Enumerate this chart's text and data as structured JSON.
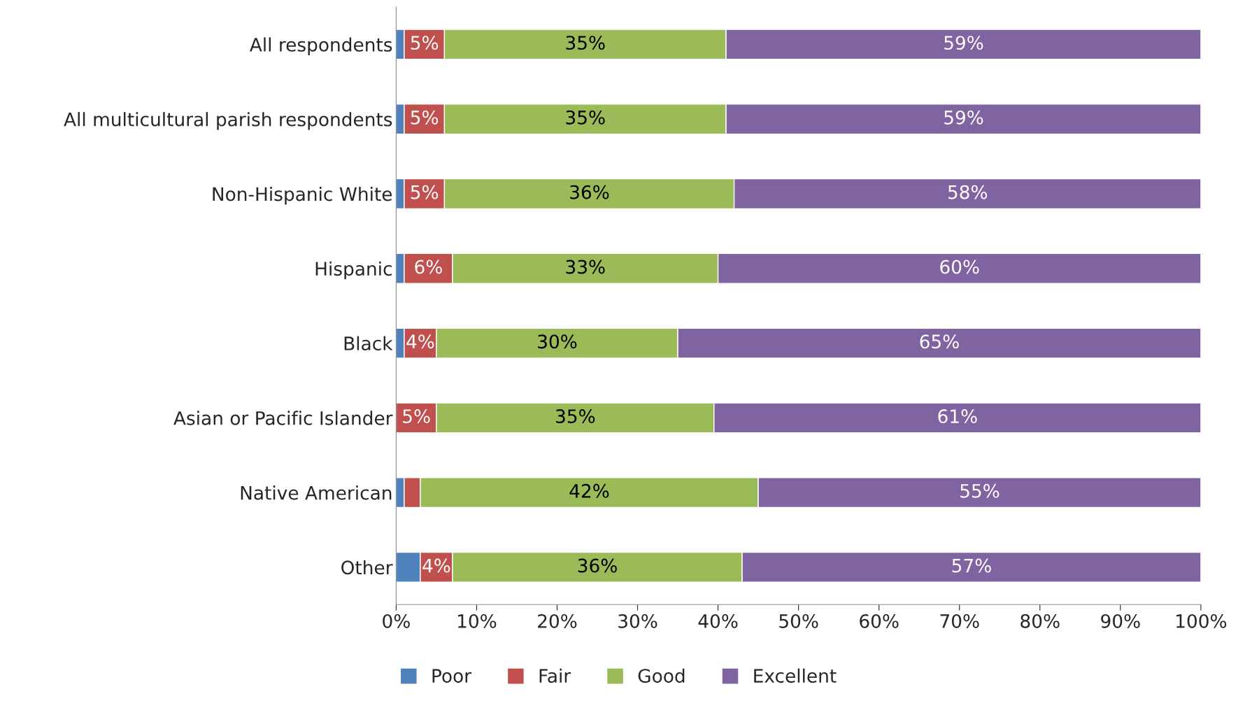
{
  "chart_data": {
    "type": "bar",
    "orientation": "horizontal",
    "stacked": true,
    "categories": [
      "All respondents",
      "All multicultural parish respondents",
      "Non-Hispanic White",
      "Hispanic",
      "Black",
      "Asian or Pacific Islander",
      "Native American",
      "Other"
    ],
    "series": [
      {
        "name": "Poor",
        "color": "#4f81bd",
        "values": [
          1,
          1,
          1,
          1,
          1,
          0,
          1,
          3
        ]
      },
      {
        "name": "Fair",
        "color": "#c0504d",
        "values": [
          5,
          5,
          5,
          6,
          4,
          5,
          2,
          4
        ],
        "value_labels": [
          "5%",
          "5%",
          "5%",
          "6%",
          "4%",
          "5%",
          null,
          "4%"
        ]
      },
      {
        "name": "Good",
        "color": "#9bbb59",
        "values": [
          35,
          35,
          36,
          33,
          30,
          34.5,
          42,
          36
        ],
        "value_labels": [
          "35%",
          "35%",
          "36%",
          "33%",
          "30%",
          "35%",
          "42%",
          "36%"
        ]
      },
      {
        "name": "Excellent",
        "color": "#8064a2",
        "values": [
          59,
          59,
          58,
          60,
          65,
          60.5,
          55,
          57
        ],
        "value_labels": [
          "59%",
          "59%",
          "58%",
          "60%",
          "65%",
          "61%",
          "55%",
          "57%"
        ]
      }
    ],
    "xlim": [
      0,
      100
    ],
    "xticks": [
      {
        "value": 0,
        "label": "0%"
      },
      {
        "value": 10,
        "label": "10%"
      },
      {
        "value": 20,
        "label": "20%"
      },
      {
        "value": 30,
        "label": "30%"
      },
      {
        "value": 40,
        "label": "40%"
      },
      {
        "value": 50,
        "label": "50%"
      },
      {
        "value": 60,
        "label": "60%"
      },
      {
        "value": 70,
        "label": "70%"
      },
      {
        "value": 80,
        "label": "80%"
      },
      {
        "value": 90,
        "label": "90%"
      },
      {
        "value": 100,
        "label": "100%"
      }
    ],
    "grid": false,
    "legend": "bottom"
  }
}
